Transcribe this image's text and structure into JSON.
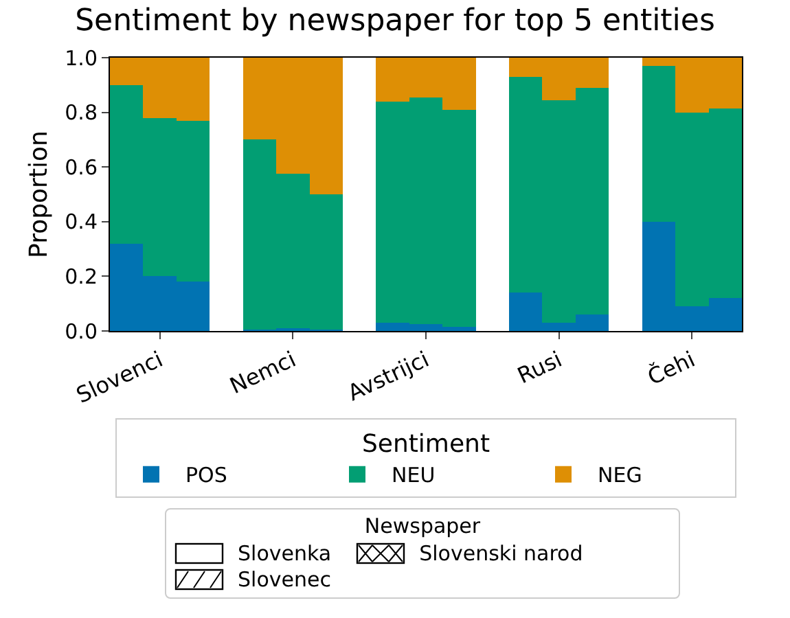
{
  "chart_data": {
    "type": "bar",
    "title": "Sentiment by newspaper for top 5 entities",
    "ylabel": "Proportion",
    "legend_title": "Sentiment",
    "categories": [
      null,
      "Slovenci",
      null,
      null,
      null,
      "Nemci",
      null,
      null,
      null,
      "Avstrijci",
      null,
      null,
      null,
      "Rusi",
      null,
      null,
      null,
      "Čehi",
      null
    ],
    "series": [
      {
        "name": "POS",
        "color": "#0173b2",
        "values": [
          0.32,
          0.2,
          0.18,
          null,
          0.005,
          0.01,
          0.005,
          null,
          0.03,
          0.025,
          0.015,
          null,
          0.14,
          0.03,
          0.06,
          null,
          0.4,
          0.09,
          0.12
        ]
      },
      {
        "name": "NEU",
        "color": "#029e73",
        "values": [
          0.58,
          0.58,
          0.59,
          null,
          0.695,
          0.565,
          0.495,
          null,
          0.81,
          0.83,
          0.795,
          null,
          0.79,
          0.815,
          0.83,
          null,
          0.57,
          0.71,
          0.695
        ]
      },
      {
        "name": "NEG",
        "color": "#de8f05",
        "values": [
          0.1,
          0.22,
          0.23,
          null,
          0.3,
          0.425,
          0.5,
          null,
          0.16,
          0.145,
          0.19,
          null,
          0.07,
          0.155,
          0.11,
          null,
          0.03,
          0.2,
          0.185
        ]
      }
    ],
    "stacked": true,
    "ylim": [
      0,
      1.0
    ],
    "yticks": [
      {
        "value": 0,
        "label": "0.0"
      },
      {
        "value": 0.2,
        "label": "0.2"
      },
      {
        "value": 0.4,
        "label": "0.4"
      },
      {
        "value": 0.6,
        "label": "0.6"
      },
      {
        "value": 0.8,
        "label": "0.8"
      },
      {
        "value": 1.0,
        "label": "1.0"
      }
    ],
    "grid": false,
    "legend": "bottom",
    "annotations": [
      "Newspaper",
      "Slovenka",
      "Slovenec",
      "Slovenski narod"
    ]
  }
}
